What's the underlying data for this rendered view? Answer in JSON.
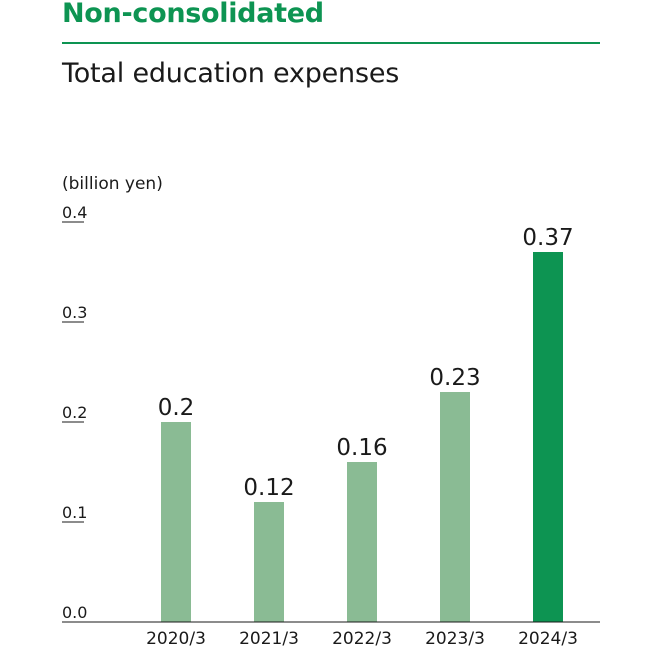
{
  "header": {
    "section_title": "Non-consolidated"
  },
  "chart_data": {
    "type": "bar",
    "title": "Total education expenses",
    "ylabel": "(billion yen)",
    "xlabel": "",
    "categories": [
      "2020/3",
      "2021/3",
      "2022/3",
      "2023/3",
      "2024/3"
    ],
    "values": [
      0.2,
      0.12,
      0.16,
      0.23,
      0.37
    ],
    "value_labels": [
      "0.2",
      "0.12",
      "0.16",
      "0.23",
      "0.37"
    ],
    "yticks": [
      "0.0",
      "0.1",
      "0.2",
      "0.3",
      "0.4"
    ],
    "ylim": [
      0,
      0.4
    ],
    "grid": false,
    "legend": "none",
    "colors": {
      "bar": "#8abb94",
      "highlight_bar": "#0d9452",
      "accent": "#0d9452"
    },
    "highlight_index": 4
  }
}
